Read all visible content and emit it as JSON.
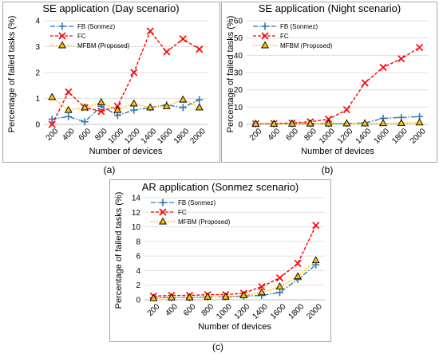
{
  "chart_data": [
    {
      "type": "line",
      "id": "a",
      "title": "SE application (Day scenario)",
      "xlabel": "Number of devices",
      "ylabel": "Percentage of failed tasks (%)",
      "sublabel": "(a)",
      "categories": [
        "200",
        "400",
        "600",
        "800",
        "1000",
        "1200",
        "1400",
        "1600",
        "1800",
        "2000"
      ],
      "ylim": [
        0,
        4
      ],
      "yticks": [
        0,
        1,
        2,
        3,
        4
      ],
      "grid": "horizontal",
      "legend_position": "top-left",
      "series": [
        {
          "name": "FB (Sonmez)",
          "color": "#2e75b6",
          "marker": "plus",
          "dash": "dash-dot",
          "values": [
            0.2,
            0.3,
            0.1,
            0.7,
            0.35,
            0.55,
            0.65,
            0.75,
            0.65,
            0.95
          ]
        },
        {
          "name": "FC",
          "color": "#ff0000",
          "marker": "x",
          "dash": "dash",
          "values": [
            0.0,
            1.25,
            0.65,
            0.5,
            0.7,
            2.0,
            3.6,
            2.8,
            3.3,
            2.9
          ]
        },
        {
          "name": "MFBM (Proposed)",
          "color": "#ffc000",
          "marker": "triangle",
          "dash": "dot",
          "values": [
            1.05,
            0.55,
            0.65,
            0.85,
            0.55,
            0.8,
            0.65,
            0.7,
            0.95,
            0.65
          ]
        }
      ]
    },
    {
      "type": "line",
      "id": "b",
      "title": "SE application (Night scenario)",
      "xlabel": "Number of devices",
      "ylabel": "Percentage of failed tasks (%)",
      "sublabel": "(b)",
      "categories": [
        "200",
        "400",
        "600",
        "800",
        "1000",
        "1200",
        "1400",
        "1600",
        "1800",
        "2000"
      ],
      "ylim": [
        0,
        60
      ],
      "yticks": [
        0,
        10,
        20,
        30,
        40,
        50,
        60
      ],
      "grid": "horizontal",
      "legend_position": "top-left",
      "series": [
        {
          "name": "FB (Sonmez)",
          "color": "#2e75b6",
          "marker": "plus",
          "dash": "dash-dot",
          "values": [
            0.3,
            0.3,
            0.4,
            0.5,
            0.5,
            0.6,
            0.8,
            3.5,
            4.0,
            4.5
          ]
        },
        {
          "name": "FC",
          "color": "#ff0000",
          "marker": "x",
          "dash": "dash",
          "values": [
            0.3,
            0.5,
            0.8,
            1.5,
            3.0,
            8.5,
            24.0,
            33.0,
            38.0,
            44.5
          ]
        },
        {
          "name": "MFBM (Proposed)",
          "color": "#ffc000",
          "marker": "triangle",
          "dash": "dot",
          "values": [
            0.3,
            0.3,
            0.3,
            0.4,
            0.4,
            0.5,
            0.5,
            0.6,
            0.7,
            1.0
          ]
        }
      ]
    },
    {
      "type": "line",
      "id": "c",
      "title": "AR application (Sonmez scenario)",
      "xlabel": "Number of devices",
      "ylabel": "Percentage of failed tasks (%)",
      "sublabel": "(c)",
      "categories": [
        "200",
        "400",
        "600",
        "800",
        "1000",
        "1200",
        "1400",
        "1600",
        "1800",
        "2000"
      ],
      "ylim": [
        0,
        14
      ],
      "yticks": [
        0,
        2,
        4,
        6,
        8,
        10,
        12,
        14
      ],
      "grid": "horizontal",
      "legend_position": "top-left",
      "series": [
        {
          "name": "FB (Sonmez)",
          "color": "#2e75b6",
          "marker": "plus",
          "dash": "dash-dot",
          "values": [
            0.3,
            0.3,
            0.3,
            0.4,
            0.4,
            0.5,
            0.6,
            1.0,
            2.8,
            4.8
          ]
        },
        {
          "name": "FC",
          "color": "#ff0000",
          "marker": "x",
          "dash": "dash",
          "values": [
            0.5,
            0.6,
            0.6,
            0.7,
            0.7,
            0.9,
            1.8,
            3.0,
            5.0,
            10.2
          ]
        },
        {
          "name": "MFBM (Proposed)",
          "color": "#ffc000",
          "marker": "triangle",
          "dash": "dot",
          "values": [
            0.2,
            0.3,
            0.3,
            0.4,
            0.4,
            0.6,
            1.0,
            1.8,
            3.2,
            5.4
          ]
        }
      ]
    }
  ]
}
